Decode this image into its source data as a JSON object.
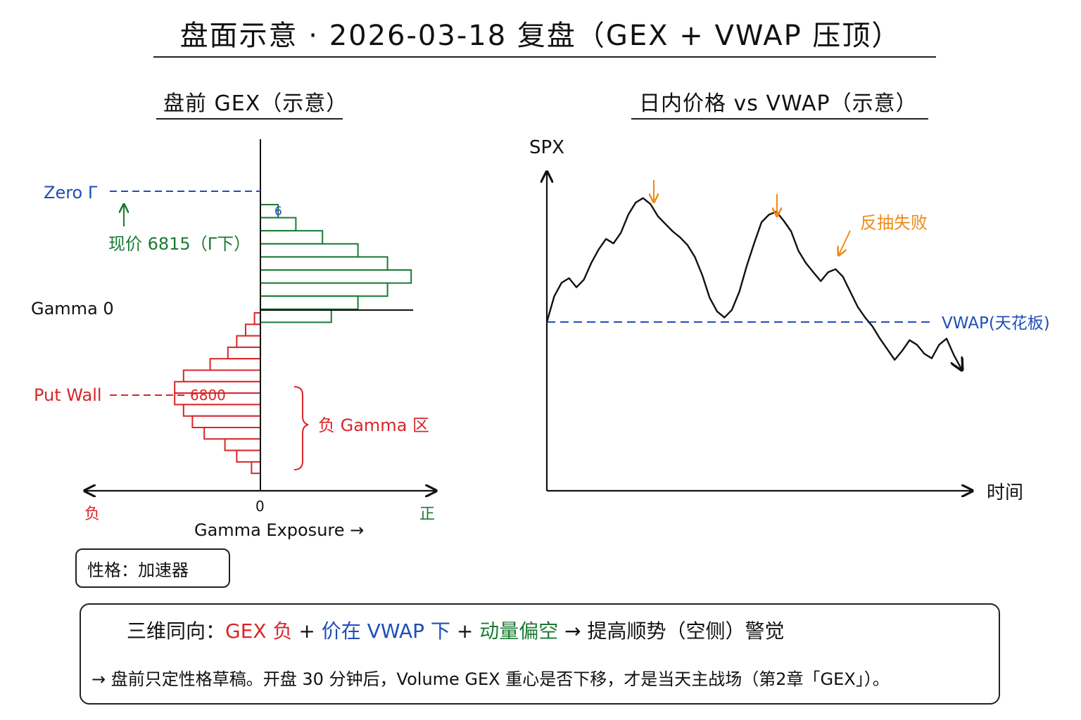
{
  "header": {
    "title": "盘面示意 · 2026-03-18 复盘（GEX + VWAP 压顶）"
  },
  "left_panel": {
    "subtitle": "盘前 GEX（示意）",
    "zero_label": "Zero Γ",
    "price_label": "现价 6815（Γ下）",
    "gamma0_label": "Gamma 0",
    "putwall_label": "Put Wall",
    "putwall_strike": "6800",
    "zone_label": "负 Gamma 区",
    "top_bar_label": "6",
    "x_axis_zero": "0",
    "x_axis_neg": "负",
    "x_axis_pos": "正",
    "x_axis_label": "Gamma Exposure →",
    "trait_label": "性格：加速器"
  },
  "right_panel": {
    "subtitle": "日内价格 vs VWAP（示意）",
    "y_label": "SPX",
    "x_label": "时间",
    "vwap_label": "VWAP(天花板)",
    "failed_rebound_label": "反抽失败"
  },
  "summary": {
    "star_icon": "star-icon",
    "prefix": "三维同向：",
    "part1": "GEX 负",
    "plus1": " + ",
    "part2": "价在 VWAP 下",
    "plus2": " + ",
    "part3": "动量偏空",
    "suffix": " → 提高顺势（空侧）警觉",
    "line2": "→ 盘前只定性格草稿。开盘 30 分钟后，Volume GEX 重心是否下移，才是当天主战场（第2章「GEX」）。"
  },
  "colors": {
    "red": "#d9252a",
    "blue": "#1e4fb6",
    "green": "#1a7a32",
    "orange": "#f18a17",
    "ink": "#111111"
  },
  "chart_data": [
    {
      "type": "bar",
      "orientation": "horizontal",
      "title": "盘前 GEX（示意）",
      "xlabel": "Gamma Exposure",
      "note": "Illustrative schematic; values are relative bar lengths (positive = green, negative = red), listed top to bottom",
      "positive_values": [
        0.6,
        1.2,
        2.1,
        3.3,
        4.3,
        5.1,
        4.3,
        3.3,
        2.4
      ],
      "negative_values": [
        -0.2,
        -0.5,
        -0.8,
        -1.1,
        -1.7,
        -2.6,
        -2.9,
        -2.9,
        -2.6,
        -2.3,
        -1.9,
        -1.2,
        -0.8,
        -0.3
      ],
      "markers": [
        "Zero Γ",
        "现价 6815（Γ下）",
        "Gamma 0",
        "Put Wall"
      ]
    },
    {
      "type": "line",
      "title": "日内价格 vs VWAP（示意）",
      "xlabel": "时间",
      "ylabel": "SPX",
      "note": "Illustrative schematic; relative values with VWAP = 0",
      "series": [
        {
          "values": [
            0,
            17,
            26,
            29,
            23,
            28,
            39,
            48,
            55,
            52,
            59,
            71,
            79,
            82,
            78,
            70,
            65,
            60,
            56,
            51,
            43,
            31,
            16,
            7,
            3,
            8,
            20,
            37,
            52,
            66,
            71,
            73,
            67,
            60,
            47,
            39,
            33,
            27,
            33,
            35,
            30,
            20,
            10,
            3,
            -3,
            -11,
            -18,
            -25,
            -19,
            -12,
            -15,
            -21,
            -24,
            -15,
            -11,
            -22,
            -31
          ]
        }
      ],
      "vwap": 0,
      "annotations": [
        "反抽失败"
      ]
    }
  ]
}
